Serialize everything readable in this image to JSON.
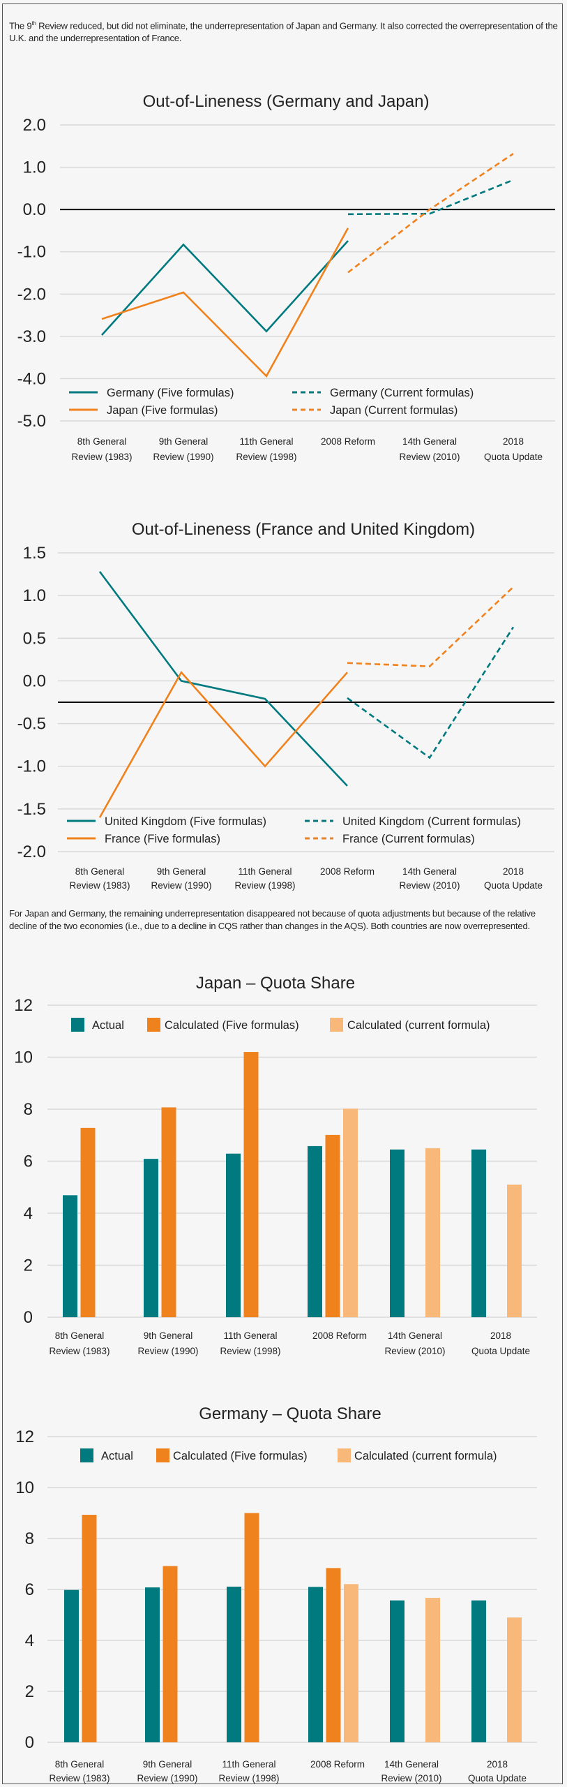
{
  "text": {
    "para1_pre": "The 9",
    "para1_sup": "th",
    "para1_post": " Review reduced, but did not eliminate, the underrepresentation of Japan and Germany. It also corrected the overrepresentation of the U.K. and the underrepresentation of France.",
    "para2": "For Japan and Germany, the remaining underrepresentation disappeared not because of quota adjustments but because of the relative decline of the two economies (i.e., due to a decline in CQS rather than changes in the AQS). Both countries are now overrepresented."
  },
  "colors": {
    "teal": "#007a7f",
    "orange": "#f0821e",
    "light_orange": "#f8b87a",
    "grid": "#d9d9d9",
    "reference_line": "#000000"
  },
  "chart_data": [
    {
      "type": "line",
      "title": "Out-of-Lineness (Germany and Japan)",
      "categories": [
        [
          "8th General",
          "Review (1983)"
        ],
        [
          "9th General",
          "Review (1990)"
        ],
        [
          "11th General",
          "Review (1998)"
        ],
        [
          "2008 Reform"
        ],
        [
          "14th General",
          "Review (2010)"
        ],
        [
          "2018",
          "Quota Update"
        ]
      ],
      "ylim": [
        -5,
        2
      ],
      "yticks": [
        "2.0",
        "1.0",
        "0.0",
        "-1.0",
        "-2.0",
        "-3.0",
        "-4.0",
        "-5.0"
      ],
      "ytick_values": [
        2,
        1,
        0,
        -1,
        -2,
        -3,
        -4,
        -5
      ],
      "reference_line": 0,
      "grid": true,
      "legend": "bottom",
      "series": [
        {
          "name": "Germany (Five formulas)",
          "color": "teal",
          "dashed": false,
          "values": [
            -2.97,
            -0.83,
            -2.88,
            -0.74,
            null,
            null
          ]
        },
        {
          "name": "Japan (Five formulas)",
          "color": "orange",
          "dashed": false,
          "values": [
            -2.59,
            -1.96,
            -3.94,
            -0.44,
            null,
            null
          ]
        },
        {
          "name": "Germany (Current formulas)",
          "color": "teal",
          "dashed": true,
          "values": [
            null,
            null,
            null,
            -0.11,
            -0.1,
            0.7
          ]
        },
        {
          "name": "Japan (Current formulas)",
          "color": "orange",
          "dashed": true,
          "values": [
            null,
            null,
            null,
            -1.49,
            0.0,
            1.32
          ]
        }
      ]
    },
    {
      "type": "line",
      "title": "Out-of-Lineness (France and United Kingdom)",
      "categories": [
        [
          "8th General",
          "Review (1983)"
        ],
        [
          "9th General",
          "Review (1990)"
        ],
        [
          "11th General",
          "Review (1998)"
        ],
        [
          "2008 Reform"
        ],
        [
          "14th General",
          "Review (2010)"
        ],
        [
          "2018",
          "Quota Update"
        ]
      ],
      "ylim": [
        -2,
        1.5
      ],
      "yticks": [
        "1.5",
        "1.0",
        "0.5",
        "0.0",
        "-0.5",
        "-1.0",
        "-1.5",
        "-2.0"
      ],
      "ytick_values": [
        1.5,
        1,
        0.5,
        0,
        -0.5,
        -1,
        -1.5,
        -2
      ],
      "reference_line": -0.25,
      "grid": true,
      "legend": "bottom",
      "series": [
        {
          "name": "United Kingdom (Five formulas)",
          "color": "teal",
          "dashed": false,
          "values": [
            1.28,
            0.0,
            -0.21,
            -1.23,
            null,
            null
          ]
        },
        {
          "name": "France (Five formulas)",
          "color": "orange",
          "dashed": false,
          "values": [
            -1.6,
            0.1,
            -1.0,
            0.1,
            null,
            null
          ]
        },
        {
          "name": "United Kingdom (Current formulas)",
          "color": "teal",
          "dashed": true,
          "values": [
            null,
            null,
            null,
            -0.2,
            -0.9,
            0.63
          ]
        },
        {
          "name": "France (Current formulas)",
          "color": "orange",
          "dashed": true,
          "values": [
            null,
            null,
            null,
            0.21,
            0.17,
            1.1
          ]
        }
      ]
    },
    {
      "type": "bar",
      "title": "Japan – Quota Share",
      "categories": [
        [
          "8th General",
          "Review (1983)"
        ],
        [
          "9th General",
          "Review (1990)"
        ],
        [
          "11th General",
          "Review (1998)"
        ],
        [
          "2008 Reform"
        ],
        [
          "14th General",
          "Review (2010)"
        ],
        [
          "2018",
          "Quota Update"
        ]
      ],
      "ylim": [
        0,
        12
      ],
      "yticks": [
        "12",
        "10",
        "8",
        "6",
        "4",
        "2",
        "0"
      ],
      "ytick_values": [
        12,
        10,
        8,
        6,
        4,
        2,
        0
      ],
      "grid": true,
      "legend": "top",
      "series": [
        {
          "name": "Actual",
          "color": "teal",
          "values": [
            4.69,
            6.09,
            6.29,
            6.58,
            6.45,
            6.45
          ]
        },
        {
          "name": "Calculated (Five formulas)",
          "color": "orange",
          "values": [
            7.28,
            8.07,
            10.2,
            7.01,
            null,
            null
          ]
        },
        {
          "name": "Calculated (current formula)",
          "color": "light_orange",
          "values": [
            null,
            null,
            null,
            8.02,
            6.5,
            5.1
          ]
        }
      ]
    },
    {
      "type": "bar",
      "title": "Germany – Quota Share",
      "categories": [
        [
          "8th General",
          "Review (1983)"
        ],
        [
          "9th General",
          "Review (1990)"
        ],
        [
          "11th General",
          "Review (1998)"
        ],
        [
          "2008 Reform"
        ],
        [
          "14th General",
          "Review (2010)"
        ],
        [
          "2018",
          "Quota Update"
        ]
      ],
      "ylim": [
        0,
        12
      ],
      "yticks": [
        "12",
        "10",
        "8",
        "6",
        "4",
        "2",
        "0"
      ],
      "ytick_values": [
        12,
        10,
        8,
        6,
        4,
        2,
        0
      ],
      "grid": true,
      "legend": "top",
      "series": [
        {
          "name": "Actual",
          "color": "teal",
          "values": [
            5.98,
            6.08,
            6.11,
            6.1,
            5.57,
            5.57
          ]
        },
        {
          "name": "Calculated (Five formulas)",
          "color": "orange",
          "values": [
            8.93,
            6.92,
            9.0,
            6.84,
            null,
            null
          ]
        },
        {
          "name": "Calculated (current formula)",
          "color": "light_orange",
          "values": [
            null,
            null,
            null,
            6.21,
            5.67,
            4.9
          ]
        }
      ]
    }
  ]
}
